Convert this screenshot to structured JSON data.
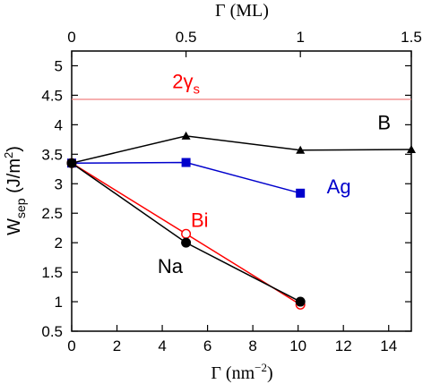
{
  "chart_data": {
    "type": "line",
    "xlabel": "Γ (nm⁻²)",
    "xlabel_parts": {
      "main": "Γ (nm",
      "sup": "−2",
      "close": ")"
    },
    "x2label": "Γ (ML)",
    "ylabel_parts": {
      "main": "W",
      "sub": "sep",
      "rest": " (J/m",
      "sup": "2",
      "close": ")"
    },
    "xlim": [
      0,
      15
    ],
    "ylim": [
      0.5,
      5.25
    ],
    "xticks": [
      0,
      2,
      4,
      6,
      8,
      10,
      12,
      14
    ],
    "yticks": [
      0.5,
      1,
      1.5,
      2,
      2.5,
      3,
      3.5,
      4,
      4.5,
      5
    ],
    "ytick_labels": [
      "0.5",
      "1",
      "1.5",
      "2",
      "2.5",
      "3",
      "3.5",
      "4",
      "4.5",
      "5"
    ],
    "top_ticks": [
      {
        "label": "0",
        "x": 0
      },
      {
        "label": "0.5",
        "x": 5.05
      },
      {
        "label": "1",
        "x": 10.1
      },
      {
        "label": "1.5",
        "x": 15.15
      }
    ],
    "hline": {
      "label": "2γs",
      "label_main": "2γ",
      "label_sub": "s",
      "y": 4.43,
      "color": "#f08080",
      "label_color": "#ff0000",
      "label_x": 5.05,
      "label_y": 4.62
    },
    "series": [
      {
        "name": "B",
        "color": "#000000",
        "marker": "triangle",
        "filled": true,
        "x": [
          0,
          5.05,
          10.1,
          15.15
        ],
        "y": [
          3.35,
          3.81,
          3.57,
          3.58
        ],
        "label_x": 13.8,
        "label_y": 3.92
      },
      {
        "name": "Ag",
        "color": "#0000cc",
        "marker": "square",
        "filled": true,
        "x": [
          0,
          5.05,
          10.1
        ],
        "y": [
          3.35,
          3.36,
          2.84
        ],
        "label_x": 11.8,
        "label_y": 2.84
      },
      {
        "name": "Bi",
        "color": "#ff0000",
        "marker": "circle",
        "filled": false,
        "x": [
          0,
          5.05,
          10.1
        ],
        "y": [
          3.35,
          2.15,
          0.95
        ],
        "label_x": 5.65,
        "label_y": 2.27
      },
      {
        "name": "Na",
        "color": "#000000",
        "marker": "circle",
        "filled": true,
        "x": [
          0,
          5.05,
          10.1
        ],
        "y": [
          3.35,
          2.0,
          1.0
        ],
        "label_x": 4.35,
        "label_y": 1.49
      }
    ]
  }
}
